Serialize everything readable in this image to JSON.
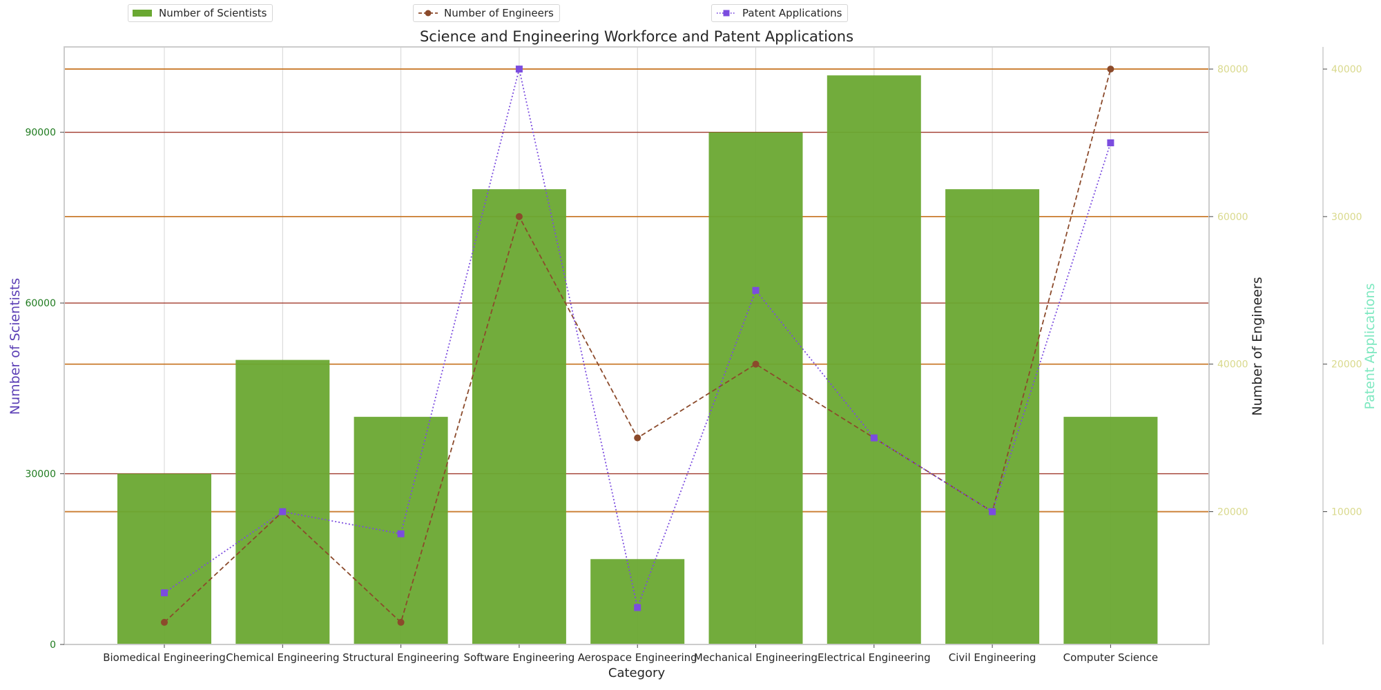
{
  "chart_data": {
    "type": "bar",
    "title": "Science and Engineering Workforce and Patent Applications",
    "xlabel": "Category",
    "categories": [
      "Biomedical Engineering",
      "Chemical Engineering",
      "Structural Engineering",
      "Software Engineering",
      "Aerospace Engineering",
      "Mechanical Engineering",
      "Electrical Engineering",
      "Civil Engineering",
      "Computer Science"
    ],
    "series": [
      {
        "name": "Number of Scientists",
        "kind": "bar",
        "axis": "left",
        "color": "#6aa832",
        "values": [
          30000,
          50000,
          40000,
          80000,
          15000,
          90000,
          100000,
          80000,
          40000
        ]
      },
      {
        "name": "Number of Engineers",
        "kind": "line",
        "axis": "right1",
        "color": "#8b4a2b",
        "linestyle": "dashed",
        "marker": "circle",
        "values": [
          5000,
          20000,
          5000,
          60000,
          30000,
          40000,
          30000,
          20000,
          80000
        ]
      },
      {
        "name": "Patent Applications",
        "kind": "line",
        "axis": "right2",
        "color": "#7b4cdf",
        "linestyle": "dotted",
        "marker": "square",
        "values": [
          4500,
          10000,
          8500,
          40000,
          3500,
          25000,
          15000,
          10000,
          35000
        ]
      }
    ],
    "axes": {
      "left": {
        "label": "Number of Scientists",
        "label_color": "#5b3fb5",
        "tick_color": "#1e7a1e",
        "ylim": [
          0,
          105000
        ],
        "ticks": [
          "0",
          "30000",
          "60000",
          "90000"
        ],
        "tick_values": [
          0,
          30000,
          60000,
          90000
        ]
      },
      "right1": {
        "label": "Number of Engineers",
        "label_color": "#262626",
        "tick_color": "#d9d98c",
        "ylim": [
          2000,
          83000
        ],
        "ticks": [
          "20000",
          "40000",
          "60000",
          "80000"
        ],
        "tick_values": [
          20000,
          40000,
          60000,
          80000
        ]
      },
      "right2": {
        "label": "Patent Applications",
        "label_color": "#7de8c0",
        "tick_color": "#d9d98c",
        "ylim": [
          1000,
          41500
        ],
        "ticks": [
          "10000",
          "20000",
          "30000",
          "40000"
        ],
        "tick_values": [
          10000,
          20000,
          30000,
          40000
        ]
      }
    },
    "gridlines": {
      "left_color": "#a0392c",
      "right_color": "#c97a2c"
    },
    "legend": [
      {
        "label": "Number of Scientists",
        "placement": "top-left"
      },
      {
        "label": "Number of Engineers",
        "placement": "top-center"
      },
      {
        "label": "Patent Applications",
        "placement": "top-right"
      }
    ]
  }
}
